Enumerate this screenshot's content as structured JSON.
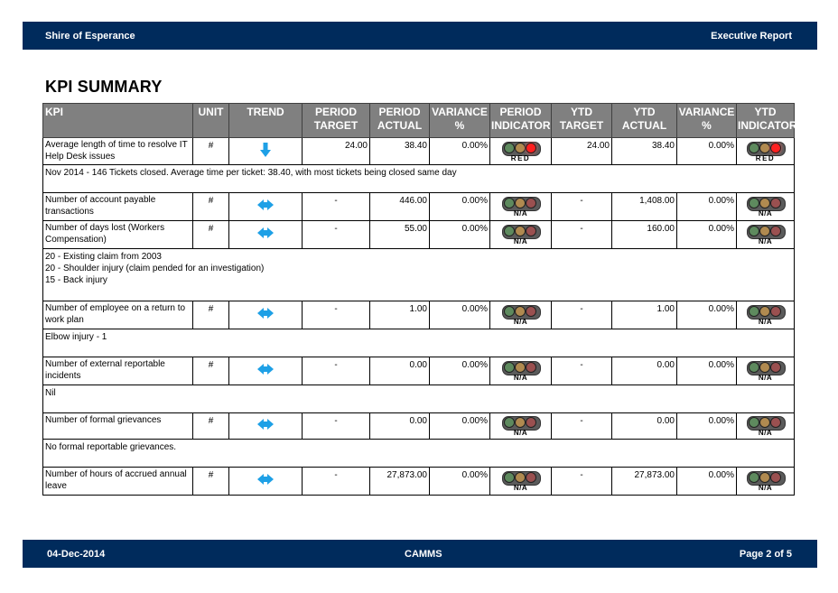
{
  "header": {
    "left": "Shire of Esperance",
    "right": "Executive Report"
  },
  "page_title": "KPI SUMMARY",
  "columns": {
    "kpi": "KPI",
    "unit": "UNIT",
    "trend": "TREND",
    "period_target": "PERIOD TARGET",
    "period_actual": "PERIOD ACTUAL",
    "period_variance": "VARIANCE %",
    "period_indicator": "PERIOD INDICATOR",
    "ytd_target": "YTD TARGET",
    "ytd_actual": "YTD ACTUAL",
    "ytd_variance": "VARIANCE %",
    "ytd_indicator": "YTD INDICATOR"
  },
  "rows": [
    {
      "kpi": "Average length of time to resolve IT Help Desk issues",
      "unit": "#",
      "trend_icon": "arrow-down-icon",
      "period_target": "24.00",
      "period_actual": "38.40",
      "period_variance": "0.00%",
      "period_indicator": "RED",
      "ytd_target": "24.00",
      "ytd_actual": "38.40",
      "ytd_variance": "0.00%",
      "ytd_indicator": "RED",
      "note": "Nov 2014 - 146 Tickets closed. Average time per ticket: 38.40, with most tickets being closed same day"
    },
    {
      "kpi": "Number of account payable transactions",
      "unit": "#",
      "trend_icon": "arrow-left-right-icon",
      "period_target": "-",
      "period_actual": "446.00",
      "period_variance": "0.00%",
      "period_indicator": "N/A",
      "ytd_target": "-",
      "ytd_actual": "1,408.00",
      "ytd_variance": "0.00%",
      "ytd_indicator": "N/A",
      "note": null
    },
    {
      "kpi": "Number of days lost (Workers Compensation)",
      "unit": "#",
      "trend_icon": "arrow-left-right-icon",
      "period_target": "-",
      "period_actual": "55.00",
      "period_variance": "0.00%",
      "period_indicator": "N/A",
      "ytd_target": "-",
      "ytd_actual": "160.00",
      "ytd_variance": "0.00%",
      "ytd_indicator": "N/A",
      "note": "20 - Existing claim from 2003\n20 - Shoulder injury (claim pended for an investigation)\n15 - Back injury"
    },
    {
      "kpi": "Number of employee on a return to work plan",
      "unit": "#",
      "trend_icon": "arrow-left-right-icon",
      "period_target": "-",
      "period_actual": "1.00",
      "period_variance": "0.00%",
      "period_indicator": "N/A",
      "ytd_target": "-",
      "ytd_actual": "1.00",
      "ytd_variance": "0.00%",
      "ytd_indicator": "N/A",
      "note": "Elbow injury - 1"
    },
    {
      "kpi": "Number of external reportable incidents",
      "unit": "#",
      "trend_icon": "arrow-left-right-icon",
      "period_target": "-",
      "period_actual": "0.00",
      "period_variance": "0.00%",
      "period_indicator": "N/A",
      "ytd_target": "-",
      "ytd_actual": "0.00",
      "ytd_variance": "0.00%",
      "ytd_indicator": "N/A",
      "note": "Nil"
    },
    {
      "kpi": "Number of formal grievances",
      "unit": "#",
      "trend_icon": "arrow-left-right-icon",
      "period_target": "-",
      "period_actual": "0.00",
      "period_variance": "0.00%",
      "period_indicator": "N/A",
      "ytd_target": "-",
      "ytd_actual": "0.00",
      "ytd_variance": "0.00%",
      "ytd_indicator": "N/A",
      "note": "No formal reportable grievances."
    },
    {
      "kpi": "Number of hours of accrued annual leave",
      "unit": "#",
      "trend_icon": "arrow-left-right-icon",
      "period_target": "-",
      "period_actual": "27,873.00",
      "period_variance": "0.00%",
      "period_indicator": "N/A",
      "ytd_target": "-",
      "ytd_actual": "27,873.00",
      "ytd_variance": "0.00%",
      "ytd_indicator": "N/A",
      "note": null
    }
  ],
  "footer": {
    "date": "04-Dec-2014",
    "center": "CAMMS",
    "page": "Page 2 of 5"
  },
  "colors": {
    "band": "#002b5c",
    "header_cell": "#808080",
    "trend_arrow": "#1ea0e6",
    "indicator_red": "#ff2020"
  }
}
